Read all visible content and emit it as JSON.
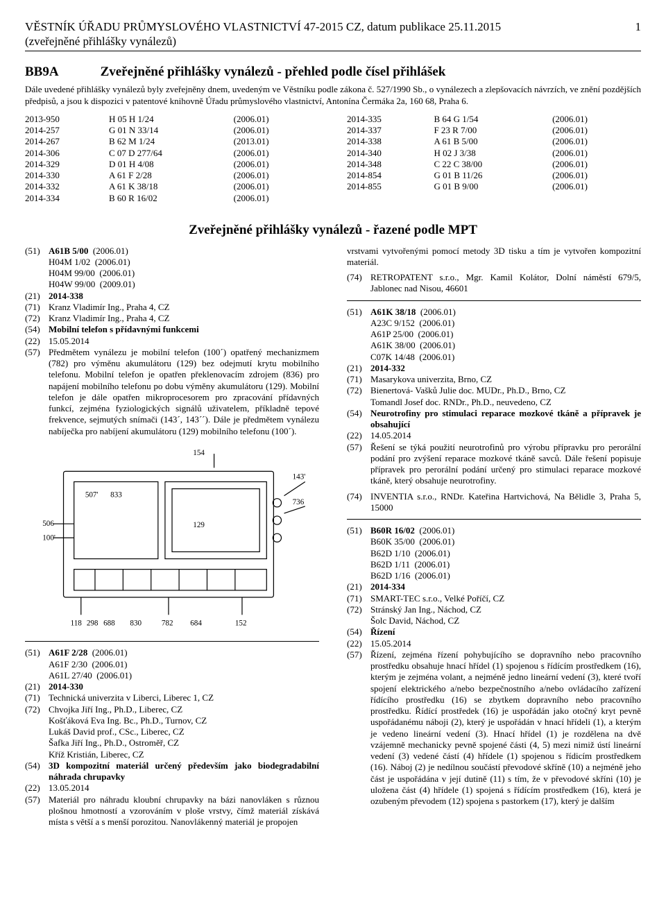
{
  "header": {
    "title": "VĚSTNÍK ÚŘADU PRŮMYSLOVÉHO VLASTNICTVÍ 47-2015 CZ, datum publikace 25.11.2015",
    "subtitle": "(zveřejněné přihlášky vynálezů)",
    "page": "1"
  },
  "bb9a": {
    "code": "BB9A",
    "title": "Zveřejněné přihlášky vynálezů - přehled podle čísel přihlášek",
    "intro": "Dále uvedené přihlášky vynálezů byly zveřejněny dnem, uvedeným ve Věstníku podle zákona č. 527/1990 Sb., o vynálezech a zlepšovacích návrzích, ve znění pozdějších předpisů, a jsou k dispozici v patentové knihovně Úřadu průmyslového vlastnictví, Antonína Čermáka 2a, 160 68, Praha 6."
  },
  "codes_left": [
    [
      "2013-950",
      "H 05 H 1/24",
      "(2006.01)"
    ],
    [
      "2014-257",
      "G 01 N 33/14",
      "(2006.01)"
    ],
    [
      "2014-267",
      "B 62 M 1/24",
      "(2013.01)"
    ],
    [
      "2014-306",
      "C 07 D 277/64",
      "(2006.01)"
    ],
    [
      "2014-329",
      "D 01 H 4/08",
      "(2006.01)"
    ],
    [
      "2014-330",
      "A 61 F 2/28",
      "(2006.01)"
    ],
    [
      "2014-332",
      "A 61 K 38/18",
      "(2006.01)"
    ],
    [
      "2014-334",
      "B 60 R 16/02",
      "(2006.01)"
    ]
  ],
  "codes_right": [
    [
      "2014-335",
      "B 64 G 1/54",
      "(2006.01)"
    ],
    [
      "2014-337",
      "F 23 R 7/00",
      "(2006.01)"
    ],
    [
      "2014-338",
      "A 61 B 5/00",
      "(2006.01)"
    ],
    [
      "2014-340",
      "H 02 J 3/38",
      "(2006.01)"
    ],
    [
      "2014-348",
      "C 22 C 38/00",
      "(2006.01)"
    ],
    [
      "2014-854",
      "G 01 B 11/26",
      "(2006.01)"
    ],
    [
      "2014-855",
      "G 01 B 9/00",
      "(2006.01)"
    ]
  ],
  "section_title": "Zveřejněné přihlášky vynálezů - řazené podle MPT",
  "left_col": {
    "e1": {
      "l51": "(51)",
      "cls": [
        [
          "A61B 5/00",
          "(2006.01)"
        ],
        [
          "H04M 1/02",
          "(2006.01)"
        ],
        [
          "H04M 99/00",
          "(2006.01)"
        ],
        [
          "H04W 99/00",
          "(2009.01)"
        ]
      ],
      "l21": "(21)",
      "v21": "2014-338",
      "l71": "(71)",
      "v71": "Kranz Vladimír Ing., Praha 4, CZ",
      "l72": "(72)",
      "v72": "Kranz Vladimír Ing., Praha 4, CZ",
      "l54": "(54)",
      "v54": "Mobilní telefon s přídavnými funkcemi",
      "l22": "(22)",
      "v22": "15.05.2014",
      "l57": "(57)",
      "v57": "Předmětem vynálezu je mobilní telefon (100´) opatřený mechanizmem (782) pro výměnu akumulátoru (129) bez odejmutí krytu mobilního telefonu. Mobilní telefon je opatřen překlenovacím zdrojem (836) pro napájení mobilního telefonu po dobu výměny akumulátoru (129). Mobilní telefon je dále opatřen mikroprocesorem pro zpracování přídavných funkcí, zejména fyziologických signálů uživatelem, příkladně tepové frekvence, sejmutých snímači (143´, 143´´). Dále je předmětem vynálezu nabíječka pro nabíjení akumulátoru (129) mobilního telefonu (100´)."
    },
    "e2": {
      "l51": "(51)",
      "cls": [
        [
          "A61F 2/28",
          "(2006.01)"
        ],
        [
          "A61F 2/30",
          "(2006.01)"
        ],
        [
          "A61L 27/40",
          "(2006.01)"
        ]
      ],
      "l21": "(21)",
      "v21": "2014-330",
      "l71": "(71)",
      "v71": "Technická univerzita v Liberci, Liberec 1, CZ",
      "l72": "(72)",
      "v72_lines": [
        "Chvojka Jiří Ing., Ph.D., Liberec, CZ",
        "Košťáková Eva Ing. Bc., Ph.D., Turnov, CZ",
        "Lukáš David prof., CSc., Liberec, CZ",
        "Šafka Jiří Ing., Ph.D., Ostroměř, CZ",
        "Kříž Kristián, Liberec, CZ"
      ],
      "l54": "(54)",
      "v54": "3D kompozitní materiál určený především jako biodegradabilní náhrada chrupavky",
      "l22": "(22)",
      "v22": "13.05.2014",
      "l57": "(57)",
      "v57": "Materiál pro náhradu kloubní chrupavky na bázi nanovláken s různou plošnou hmotností a vzorováním v ploše vrstvy, čímž materiál získává místa s větší a s menší porozitou. Nanovlákenný materiál je propojen"
    }
  },
  "right_col": {
    "cont": "vrstvami vytvořenými pomocí metody 3D tisku a tím je vytvořen kompozitní materiál.",
    "l74": "(74)",
    "v74": "RETROPATENT s.r.o., Mgr. Kamil Kolátor, Dolní náměstí 679/5, Jablonec nad Nisou, 46601",
    "e3": {
      "l51": "(51)",
      "cls": [
        [
          "A61K 38/18",
          "(2006.01)"
        ],
        [
          "A23C 9/152",
          "(2006.01)"
        ],
        [
          "A61P 25/00",
          "(2006.01)"
        ],
        [
          "A61K 38/00",
          "(2006.01)"
        ],
        [
          "C07K 14/48",
          "(2006.01)"
        ]
      ],
      "l21": "(21)",
      "v21": "2014-332",
      "l71": "(71)",
      "v71": "Masarykova univerzita, Brno, CZ",
      "l72": "(72)",
      "v72_lines": [
        "Bienertová- Vašků Julie doc. MUDr., Ph.D., Brno, CZ",
        "Tomandl Josef doc. RNDr., Ph.D., neuvedeno, CZ"
      ],
      "l54": "(54)",
      "v54": "Neurotrofiny pro stimulaci reparace mozkové tkáně a přípravek je obsahující",
      "l22": "(22)",
      "v22": "14.05.2014",
      "l57": "(57)",
      "v57": "Řešení se týká použití neurotrofinů pro výrobu přípravku pro perorální podání pro zvýšení reparace mozkové tkáně savců. Dále řešení popisuje přípravek pro perorální podání určený pro stimulaci reparace mozkové tkáně, který obsahuje neurotrofiny.",
      "l74": "(74)",
      "v74": "INVENTIA s.r.o., RNDr. Kateřina Hartvichová, Na Bělidle 3, Praha 5, 15000"
    },
    "e4": {
      "l51": "(51)",
      "cls": [
        [
          "B60R 16/02",
          "(2006.01)"
        ],
        [
          "B60K 35/00",
          "(2006.01)"
        ],
        [
          "B62D 1/10",
          "(2006.01)"
        ],
        [
          "B62D 1/11",
          "(2006.01)"
        ],
        [
          "B62D 1/16",
          "(2006.01)"
        ]
      ],
      "l21": "(21)",
      "v21": "2014-334",
      "l71": "(71)",
      "v71": "SMART-TEC s.r.o., Velké Poříčí, CZ",
      "l72": "(72)",
      "v72_lines": [
        "Stránský Jan Ing., Náchod, CZ",
        "Šolc David, Náchod, CZ"
      ],
      "l54": "(54)",
      "v54": "Řízení",
      "l22": "(22)",
      "v22": "15.05.2014",
      "l57": "(57)",
      "v57": "Řízení, zejména řízení pohybujícího se dopravního nebo pracovního prostředku obsahuje hnací hřídel (1) spojenou s řídícím prostředkem (16), kterým je zejména volant, a nejméně jedno lineární vedení (3), které tvoří spojení elektrického a/nebo bezpečnostního a/nebo ovládacího zařízení řídícího prostředku (16) se zbytkem dopravního nebo pracovního prostředku. Řídící prostředek (16) je uspořádán jako otočný kryt pevně uspořádanému náboji (2), který je uspořádán v hnací hřídeli (1), a kterým je vedeno lineární vedení (3). Hnací hřídel (1) je rozdělena na dvě vzájemně mechanicky pevně spojené části (4, 5) mezi nimiž ústí lineární vedení (3) vedené částí (4) hřídele (1) spojenou s řídicím prostředkem (16). Náboj (2) je nedílnou součástí převodové skříně (10) a nejméně jeho část je uspořádána v její dutině (11) s tím, že v převodové skříni (10) je uložena část (4) hřídele (1) spojená s řídícím prostředkem (16), která je ozubeným převodem (12) spojena s pastorkem (17), který je dalším"
    }
  }
}
